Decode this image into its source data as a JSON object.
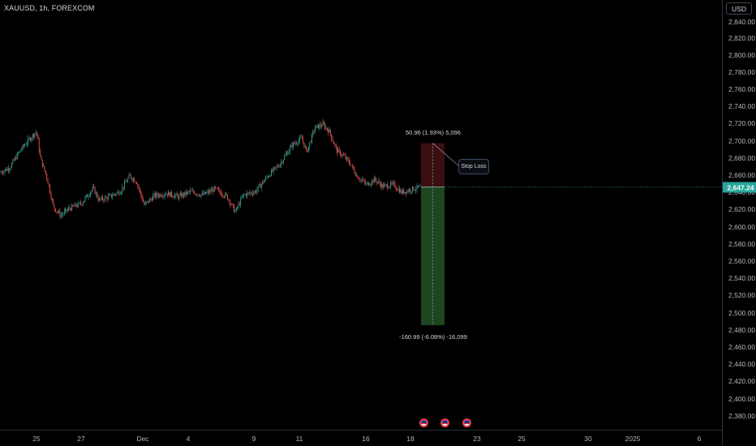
{
  "header": {
    "symbol": "XAUUSD, 1h, FOREXCOM"
  },
  "price_axis": {
    "currency": "USD",
    "ticks": [
      "2,840.00",
      "2,820.00",
      "2,800.00",
      "2,780.00",
      "2,760.00",
      "2,740.00",
      "2,720.00",
      "2,700.00",
      "2,680.00",
      "2,660.00",
      "2,640.00",
      "2,620.00",
      "2,600.00",
      "2,580.00",
      "2,560.00",
      "2,540.00",
      "2,520.00",
      "2,500.00",
      "2,480.00",
      "2,460.00",
      "2,440.00",
      "2,420.00",
      "2,400.00",
      "2,380.00"
    ],
    "current_price": "2,647.24"
  },
  "time_axis": {
    "ticks": [
      "25",
      "27",
      "Dec",
      "4",
      "9",
      "11",
      "16",
      "18",
      "23",
      "25",
      "30",
      "2025",
      "6"
    ]
  },
  "position": {
    "target_label": "50.96 (1.93%) 5,096",
    "stop_label": "-160.99 (-6.08%) -16,099",
    "callout": "Stop Loss",
    "entry": 2647.24,
    "top": 2698.2,
    "bottom": 2486.25
  },
  "colors": {
    "up": "#26a69a",
    "down": "#ef5350",
    "profit_zone": "#1e4620",
    "loss_zone": "#3b0f12",
    "price_tag": "#26a69a"
  },
  "events": [
    {
      "icon": "flag-event-icon"
    },
    {
      "icon": "flag-event-icon"
    },
    {
      "icon": "flag-event-icon"
    }
  ]
}
